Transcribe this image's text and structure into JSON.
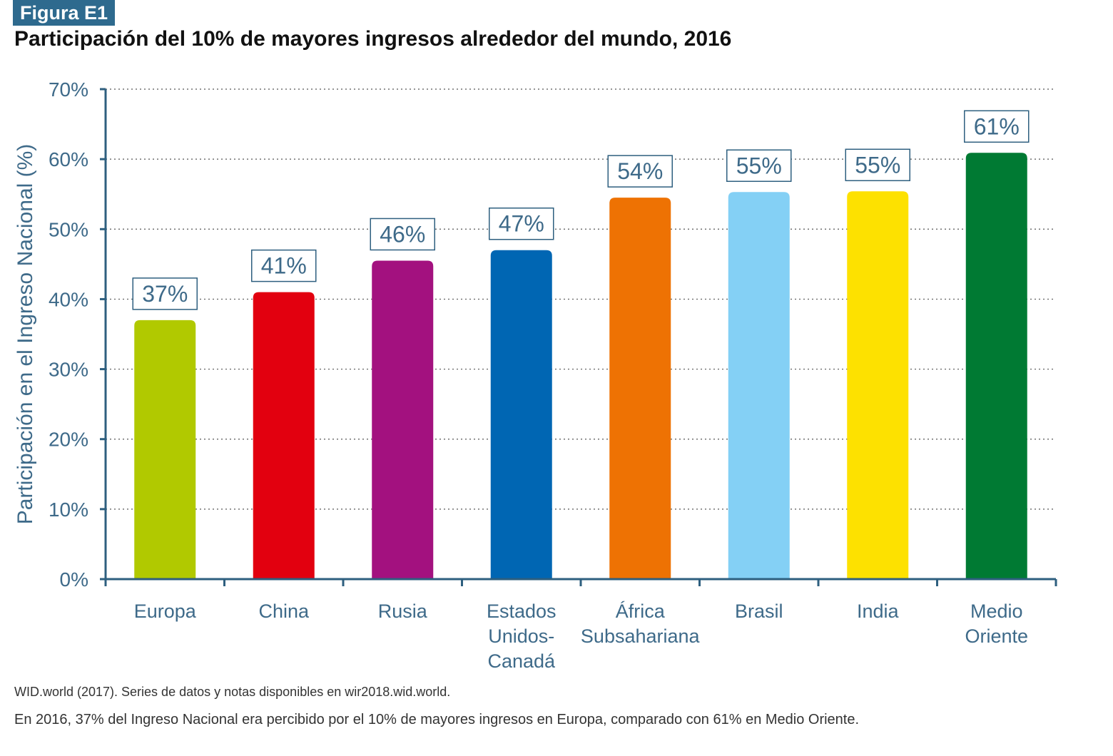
{
  "figure": {
    "tag": "Figura E1",
    "title": "Participación del 10% de mayores ingresos alrededor del mundo, 2016",
    "source": "WID.world (2017). Series de datos y notas disponibles en wir2018.wid.world.",
    "note": "En 2016, 37% del Ingreso Nacional era percibido por el 10% de mayores ingresos en Europa, comparado con 61% en Medio Oriente."
  },
  "chart_data": {
    "type": "bar",
    "categories": [
      [
        "Europa"
      ],
      [
        "China"
      ],
      [
        "Rusia"
      ],
      [
        "Estados",
        "Unidos-",
        "Canadá"
      ],
      [
        "África",
        "Subsahariana"
      ],
      [
        "Brasil"
      ],
      [
        "India"
      ],
      [
        "Medio",
        "Oriente"
      ]
    ],
    "values": [
      37,
      41,
      45.5,
      47,
      54.5,
      55.3,
      55.4,
      60.9
    ],
    "data_labels": [
      "37%",
      "41%",
      "46%",
      "47%",
      "54%",
      "55%",
      "55%",
      "61%"
    ],
    "colors": [
      "#b1c900",
      "#e2000f",
      "#a3117f",
      "#0066b3",
      "#ee7203",
      "#84d0f5",
      "#fde100",
      "#007a33"
    ],
    "ylabel": "Participación en el Ingreso Nacional (%)",
    "xlabel": "",
    "ylim": [
      0,
      70
    ],
    "yticks": [
      0,
      10,
      20,
      30,
      40,
      50,
      60,
      70
    ],
    "ytick_labels": [
      "0%",
      "10%",
      "20%",
      "30%",
      "40%",
      "50%",
      "60%",
      "70%"
    ],
    "grid": true,
    "axis_color": "#2e5f7f",
    "label_color": "#3e6a89"
  }
}
